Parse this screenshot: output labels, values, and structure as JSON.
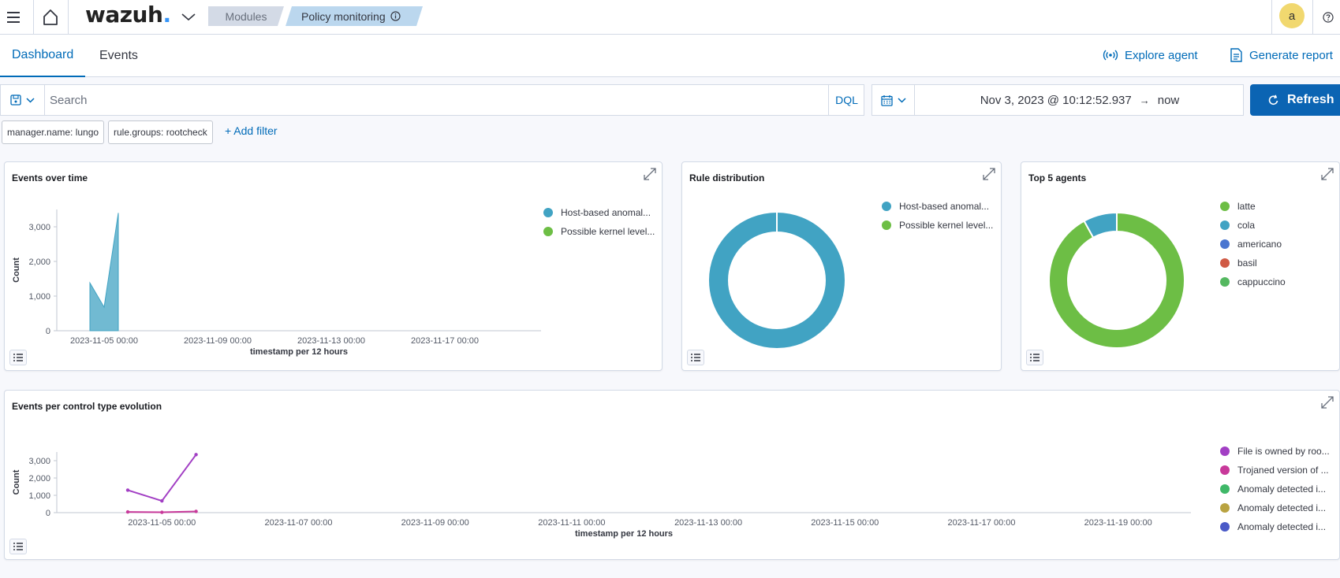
{
  "header": {
    "logo_text": "wazuh",
    "logo_dot": ".",
    "breadcrumb_modules": "Modules",
    "breadcrumb_current": "Policy monitoring",
    "avatar_initial": "a"
  },
  "tabs": [
    {
      "label": "Dashboard",
      "active": true
    },
    {
      "label": "Events",
      "active": false
    }
  ],
  "actions": {
    "explore_agent": "Explore agent",
    "generate_report": "Generate report"
  },
  "query": {
    "search_placeholder": "Search",
    "language": "DQL",
    "date_start": "Nov 3, 2023 @ 10:12:52.937",
    "date_arrow": "→",
    "date_end": "now",
    "refresh_label": "Refresh"
  },
  "filters": [
    "manager.name: lungo",
    "rule.groups: rootcheck"
  ],
  "add_filter_label": "+ Add filter",
  "colors": {
    "accent": "#006bb8",
    "teal": "#41a3c3",
    "green": "#6dbe45",
    "purple": "#a23fc4"
  },
  "panels": {
    "events_over_time": {
      "title": "Events over time"
    },
    "rule_distribution": {
      "title": "Rule distribution"
    },
    "top_agents": {
      "title": "Top 5 agents"
    },
    "control_type": {
      "title": "Events per control type evolution"
    }
  },
  "chart_data": [
    {
      "type": "area",
      "title": "Events over time",
      "xlabel": "timestamp per 12 hours",
      "ylabel": "Count",
      "ylim": [
        0,
        3500
      ],
      "yticks": [
        "0",
        "1,000",
        "2,000",
        "3,000"
      ],
      "xticks": [
        "2023-11-05 00:00",
        "2023-11-09 00:00",
        "2023-11-13 00:00",
        "2023-11-17 00:00"
      ],
      "series": [
        {
          "name": "Host-based anomal...",
          "color": "#41a3c3",
          "x": [
            "2023-11-04 12:00",
            "2023-11-05 00:00",
            "2023-11-05 12:00"
          ],
          "values": [
            1380,
            680,
            3400
          ]
        },
        {
          "name": "Possible kernel level...",
          "color": "#6dbe45",
          "x": [
            "2023-11-04 12:00",
            "2023-11-05 00:00",
            "2023-11-05 12:00"
          ],
          "values": [
            0,
            0,
            0
          ]
        }
      ],
      "legend": "top-right"
    },
    {
      "type": "pie",
      "title": "Rule distribution",
      "donut": true,
      "slices": [
        {
          "name": "Host-based anomal...",
          "color": "#41a3c3",
          "value": 100
        },
        {
          "name": "Possible kernel level...",
          "color": "#6dbe45",
          "value": 0
        }
      ],
      "legend": "top-right"
    },
    {
      "type": "pie",
      "title": "Top 5 agents",
      "donut": true,
      "slices": [
        {
          "name": "latte",
          "color": "#6dbe45",
          "value": 92
        },
        {
          "name": "cola",
          "color": "#41a3c3",
          "value": 8
        },
        {
          "name": "americano",
          "color": "#4a76d0",
          "value": 0
        },
        {
          "name": "basil",
          "color": "#d05a45",
          "value": 0
        },
        {
          "name": "cappuccino",
          "color": "#54b860",
          "value": 0
        }
      ],
      "legend": "top-right"
    },
    {
      "type": "line",
      "title": "Events per control type evolution",
      "xlabel": "timestamp per 12 hours",
      "ylabel": "Count",
      "ylim": [
        0,
        3500
      ],
      "yticks": [
        "0",
        "1,000",
        "2,000",
        "3,000"
      ],
      "xticks": [
        "2023-11-05 00:00",
        "2023-11-07 00:00",
        "2023-11-09 00:00",
        "2023-11-11 00:00",
        "2023-11-13 00:00",
        "2023-11-15 00:00",
        "2023-11-17 00:00",
        "2023-11-19 00:00"
      ],
      "series": [
        {
          "name": "File is owned by roo...",
          "color": "#a23fc4",
          "x": [
            "2023-11-04 12:00",
            "2023-11-05 00:00",
            "2023-11-05 12:00"
          ],
          "values": [
            1300,
            680,
            3350
          ]
        },
        {
          "name": "Trojaned version of ...",
          "color": "#c8399a",
          "x": [
            "2023-11-04 12:00",
            "2023-11-05 00:00",
            "2023-11-05 12:00"
          ],
          "values": [
            40,
            20,
            70
          ]
        },
        {
          "name": "Anomaly detected i...",
          "color": "#3fb868",
          "x": [
            "2023-11-04 12:00",
            "2023-11-05 00:00",
            "2023-11-05 12:00"
          ],
          "values": [
            0,
            0,
            0
          ]
        },
        {
          "name": "Anomaly detected i...",
          "color": "#b9a341",
          "x": [
            "2023-11-04 12:00",
            "2023-11-05 00:00",
            "2023-11-05 12:00"
          ],
          "values": [
            0,
            0,
            0
          ]
        },
        {
          "name": "Anomaly detected i...",
          "color": "#4a5ac7",
          "x": [
            "2023-11-04 12:00",
            "2023-11-05 00:00",
            "2023-11-05 12:00"
          ],
          "values": [
            0,
            0,
            0
          ]
        }
      ],
      "legend": "right"
    }
  ]
}
